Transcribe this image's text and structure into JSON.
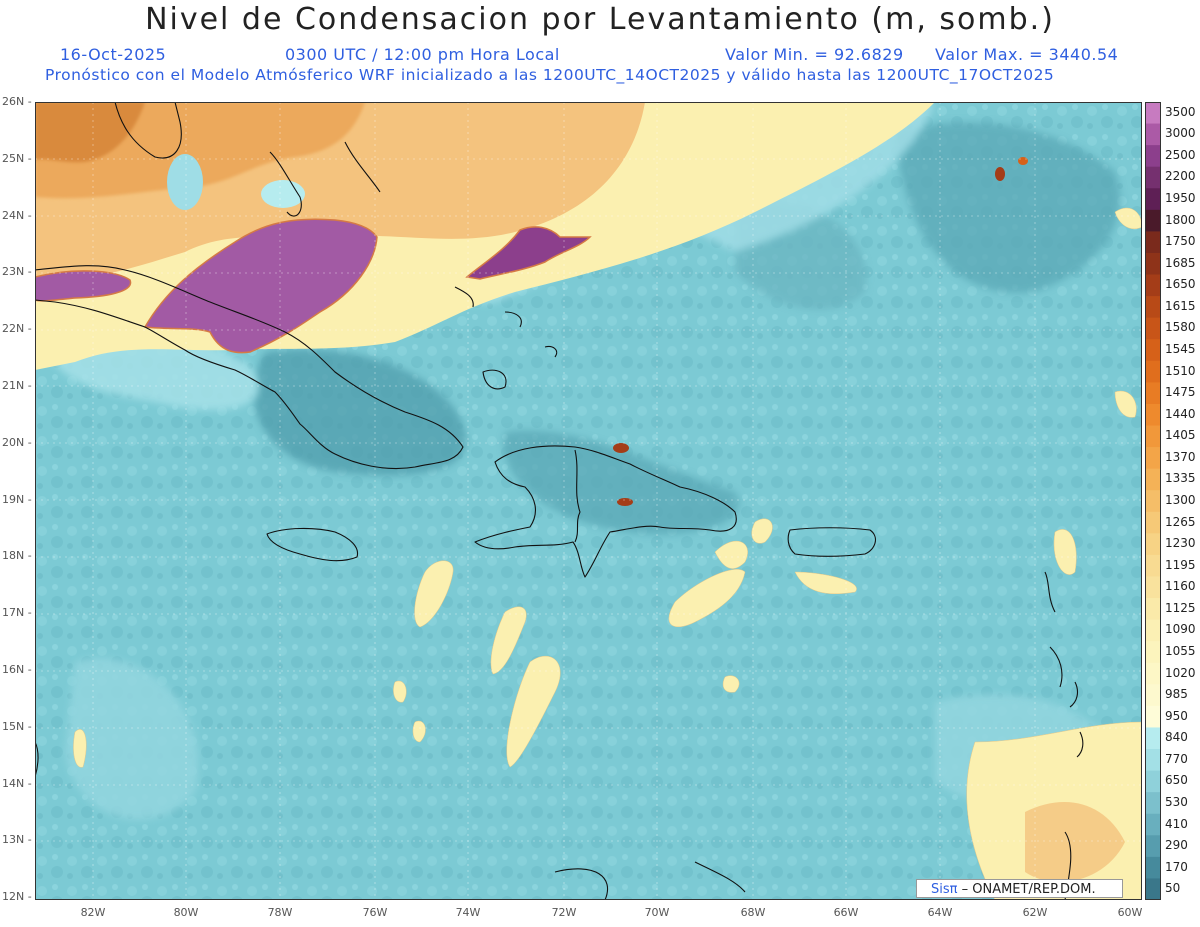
{
  "title": "Nivel de Condensacion por Levantamiento (m, somb.)",
  "date": "16-Oct-2025",
  "time": "0300 UTC / 12:00 pm Hora Local",
  "min_label": "Valor Min. = 92.6829",
  "max_label": "Valor Max. = 3440.54",
  "forecast_line": "Pronóstico con el Modelo Atmósferico WRF inicializado a las 1200UTC_14OCT2025 y válido hasta las  1200UTC_17OCT2025",
  "credit_prefix": "Sisπ",
  "credit_text": "– ONAMET/REP.DOM.",
  "lat_labels": [
    "26N",
    "25N",
    "24N",
    "23N",
    "22N",
    "21N",
    "20N",
    "19N",
    "18N",
    "17N",
    "16N",
    "15N",
    "14N",
    "13N",
    "12N"
  ],
  "lon_labels": [
    "82W",
    "80W",
    "78W",
    "76W",
    "74W",
    "72W",
    "70W",
    "68W",
    "66W",
    "64W",
    "62W",
    "60W"
  ],
  "colorbar": {
    "labels": [
      "3500",
      "3000",
      "2500",
      "2200",
      "1950",
      "1800",
      "1750",
      "1685",
      "1650",
      "1615",
      "1580",
      "1545",
      "1510",
      "1475",
      "1440",
      "1405",
      "1370",
      "1335",
      "1300",
      "1265",
      "1230",
      "1195",
      "1160",
      "1125",
      "1090",
      "1055",
      "1020",
      "985",
      "950",
      "840",
      "770",
      "650",
      "530",
      "410",
      "290",
      "170",
      "50"
    ],
    "colors": [
      "#c77bc0",
      "#ab5aa6",
      "#8c3f8c",
      "#75306f",
      "#5e1f55",
      "#4a1a2a",
      "#7a2a1c",
      "#8e3319",
      "#a43d18",
      "#b84a17",
      "#c85518",
      "#d66119",
      "#e06e1d",
      "#e87c24",
      "#ee8a2d",
      "#f1983a",
      "#f3a548",
      "#f4b257",
      "#f5be68",
      "#f6c977",
      "#f7d385",
      "#f8db92",
      "#f9e29d",
      "#faeaa9",
      "#fbf0b4",
      "#fcf4bd",
      "#fdf7c6",
      "#fdf9ce",
      "#fefcd8",
      "#b6ecef",
      "#a3e0e6",
      "#8fd1da",
      "#7cc0cc",
      "#69afbe",
      "#579dae",
      "#468a9c",
      "#3a778a"
    ]
  },
  "colors": {
    "ocean_base": "#7ccad4",
    "ocean_light": "#9fdde6",
    "ocean_dark": "#5aa8b6",
    "yellow": "#fbf0b0",
    "orange": "#f2b86a",
    "dark_orange": "#d98a3c",
    "purple": "#a25aa4",
    "purple_edge": "#d57a45",
    "coast": "#111111"
  }
}
